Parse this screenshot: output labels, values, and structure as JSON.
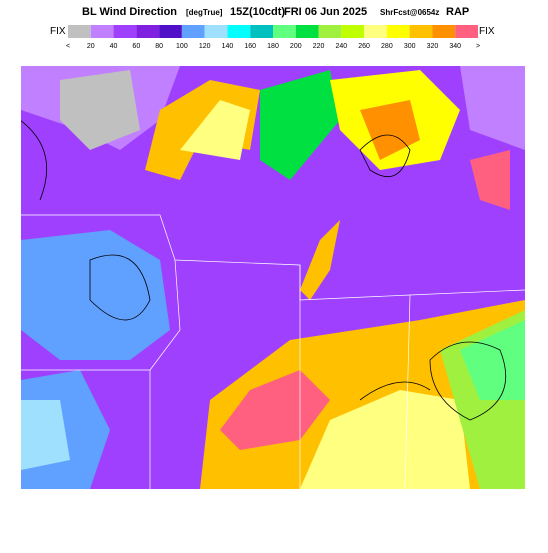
{
  "header": {
    "title": "BL Wind Direction",
    "units": "[degTrue]",
    "valid": "15Z(10cdt)",
    "date": "FRI 06 Jun 2025",
    "forecast": "ShrFcst@0654z",
    "model": "RAP"
  },
  "colorbar": {
    "left_label": "FIX",
    "right_label": "FIX",
    "labels": [
      "<",
      "20",
      "40",
      "60",
      "80",
      "100",
      "120",
      "140",
      "160",
      "180",
      "200",
      "220",
      "240",
      "260",
      "280",
      "300",
      "320",
      "340",
      ">"
    ],
    "colors": [
      "#c0c0c0",
      "#c080ff",
      "#a040ff",
      "#8020e0",
      "#5010c8",
      "#60a0ff",
      "#a0e0ff",
      "#00ffff",
      "#00c0c0",
      "#60ff80",
      "#00e040",
      "#a0f040",
      "#c0ff00",
      "#ffff80",
      "#ffff00",
      "#ffc000",
      "#ff9000",
      "#ff6080"
    ]
  }
}
